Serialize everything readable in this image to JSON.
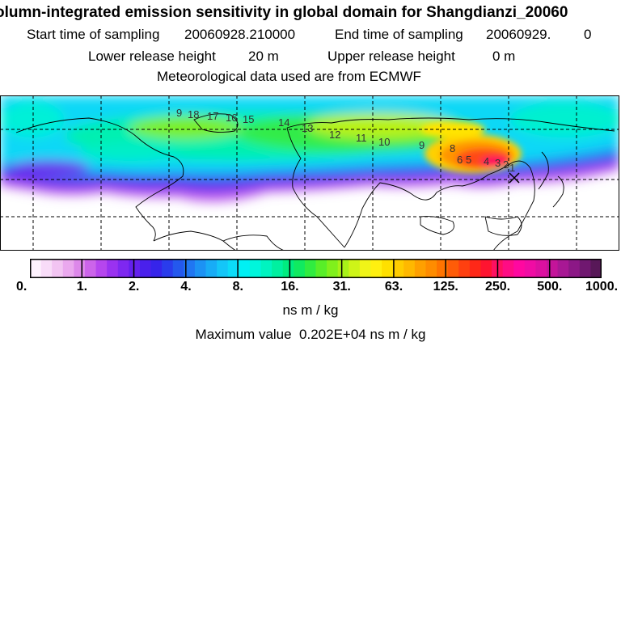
{
  "header": {
    "title": "olumn-integrated emission sensitivity in global domain for Shangdianzi_20060",
    "start_label": "Start time of sampling",
    "start_value": "20060928.210000",
    "end_label": "End time of sampling",
    "end_value": "20060929.",
    "end_hour": "0",
    "lower_label": "Lower release height",
    "lower_value": "20 m",
    "upper_label": "Upper release height",
    "upper_value": "0 m",
    "met_line": "Meteorological data used are from ECMWF"
  },
  "map": {
    "contour_labels": [
      "9",
      "18",
      "17",
      "16",
      "15",
      "14",
      "13",
      "12",
      "11",
      "10",
      "9",
      "8",
      "6",
      "5",
      "3",
      "4",
      "2",
      "1"
    ],
    "grid_style": "dashed",
    "colors": {
      "frame": "#000000",
      "land_outline": "#000000"
    }
  },
  "colorbar": {
    "tick_labels": [
      "0.",
      "1.",
      "2.",
      "4.",
      "8.",
      "16.",
      "31.",
      "63.",
      "125.",
      "250.",
      "500.",
      "1000."
    ],
    "colors": [
      "#fdf2fd",
      "#f8dcf8",
      "#f2c4f2",
      "#eaa8ee",
      "#dd88ea",
      "#cc64ea",
      "#b646ee",
      "#9a32f0",
      "#7e28f0",
      "#6420ee",
      "#4a20ec",
      "#3624ea",
      "#2a3cec",
      "#2458ee",
      "#2076f2",
      "#1c92f4",
      "#18acf6",
      "#14c6f8",
      "#0cdcf8",
      "#00f0f4",
      "#00f6dc",
      "#00f4c0",
      "#00f0a0",
      "#00ec80",
      "#10ea60",
      "#30ec40",
      "#58ee28",
      "#80f01c",
      "#a8f218",
      "#cef418",
      "#f0f418",
      "#fff010",
      "#ffe000",
      "#ffcc00",
      "#ffb800",
      "#ffa000",
      "#ff8c00",
      "#ff7400",
      "#ff5c08",
      "#ff4010",
      "#ff2818",
      "#ff1430",
      "#ff1060",
      "#ff0c84",
      "#ff08a0",
      "#f00ca4",
      "#dc10a0",
      "#c4149a",
      "#a81894",
      "#8c1886",
      "#701870",
      "#581858"
    ]
  },
  "units": "ns m / kg",
  "max_label": "Maximum value",
  "max_value": "0.202E+04 ns m / kg"
}
